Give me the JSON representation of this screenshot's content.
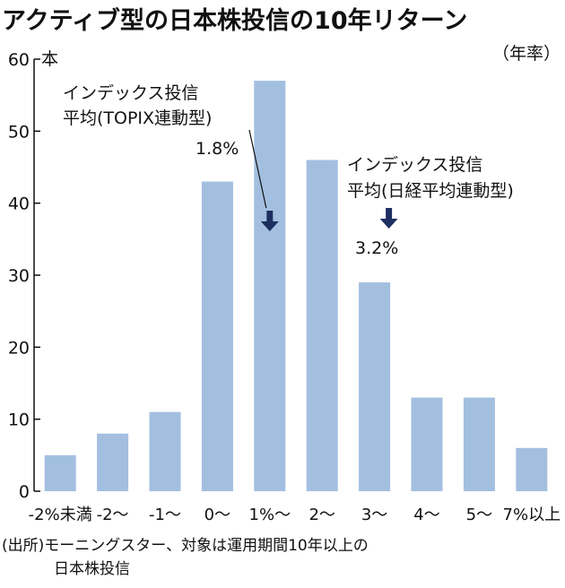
{
  "chart_data": {
    "type": "bar",
    "title": "アクティブ型の日本株投信の10年リターン",
    "subtitle": "（年率）",
    "ylabel": "本",
    "ylim": [
      0,
      60
    ],
    "yticks": [
      0,
      10,
      20,
      30,
      40,
      50,
      60
    ],
    "grid": false,
    "legend": "none",
    "categories": [
      "-2%未満",
      "-2～",
      "-1～",
      "0～",
      "1%～",
      "2～",
      "3～",
      "4～",
      "5～",
      "7%以上"
    ],
    "values": [
      5,
      8,
      11,
      43,
      57,
      46,
      29,
      13,
      13,
      6
    ],
    "bar_color": "#a3bfe0",
    "annotations": [
      {
        "lines": [
          "インデックス投信",
          "平均(TOPIX連動型)",
          "1.8%"
        ],
        "category": "1%～",
        "arrow_color": "#1d2f61"
      },
      {
        "lines": [
          "インデックス投信",
          "平均(日経平均連動型)",
          "3.2%"
        ],
        "category": "3～",
        "arrow_color": "#1d2f61"
      }
    ],
    "source": [
      "(出所)モーニングスター、対象は運用期間10年以上の",
      "日本株投信"
    ]
  }
}
